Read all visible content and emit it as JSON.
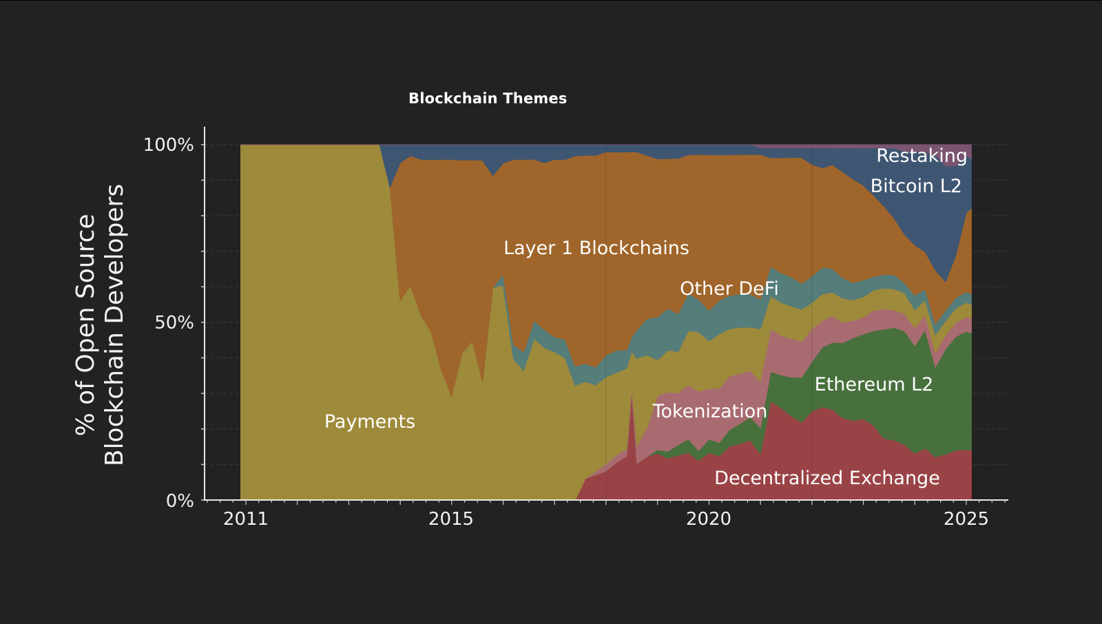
{
  "chart_data": {
    "type": "area",
    "stacked": true,
    "normalized": true,
    "title": "Blockchain Themes",
    "xlabel": "",
    "ylabel": "% of Open Source Blockchain Developers",
    "ylim": [
      0,
      100
    ],
    "xlim": [
      2010.2,
      2025.8
    ],
    "y_ticks": [
      "0%",
      "50%",
      "100%"
    ],
    "y_minor_step": 10,
    "x_ticks": [
      "2011",
      "2015",
      "2020",
      "2025"
    ],
    "grid": true,
    "legend": "inline labels",
    "x": [
      2010.9,
      2011.0,
      2013.6,
      2013.8,
      2014.0,
      2014.2,
      2014.4,
      2014.6,
      2014.8,
      2015.0,
      2015.2,
      2015.4,
      2015.6,
      2015.8,
      2016.0,
      2016.2,
      2016.4,
      2016.6,
      2016.8,
      2017.0,
      2017.2,
      2017.4,
      2017.6,
      2017.8,
      2018.0,
      2018.2,
      2018.4,
      2018.5,
      2018.6,
      2018.8,
      2019.0,
      2019.2,
      2019.4,
      2019.6,
      2019.8,
      2020.0,
      2020.2,
      2020.4,
      2020.6,
      2020.8,
      2021.0,
      2021.2,
      2021.4,
      2021.6,
      2021.8,
      2022.0,
      2022.2,
      2022.4,
      2022.6,
      2022.8,
      2023.0,
      2023.2,
      2023.4,
      2023.6,
      2023.8,
      2024.0,
      2024.2,
      2024.4,
      2024.6,
      2024.8,
      2025.0,
      2025.1
    ],
    "series": [
      {
        "name": "Decentralized Exchange",
        "color": "#9a4346",
        "values": [
          0,
          0,
          0,
          0,
          0,
          0,
          0,
          0,
          0,
          0,
          0,
          0,
          0,
          0,
          0,
          0,
          0,
          0,
          0,
          0,
          0,
          0,
          6,
          7,
          8,
          10,
          12,
          30,
          10,
          12,
          13,
          12,
          13,
          14,
          12,
          14,
          13,
          16,
          17,
          18,
          14,
          30,
          28,
          26,
          24,
          27,
          28,
          27,
          24,
          23,
          24,
          22,
          18,
          17,
          16,
          13,
          14,
          12,
          13,
          14,
          14,
          14
        ]
      },
      {
        "name": "Ethereum L2",
        "color": "#48703d",
        "values": [
          0,
          0,
          0,
          0,
          0,
          0,
          0,
          0,
          0,
          0,
          0,
          0,
          0,
          0,
          0,
          0,
          0,
          0,
          0,
          0,
          0,
          0,
          0,
          0,
          0,
          0,
          0,
          0,
          0,
          0,
          1,
          2,
          3,
          4,
          3,
          4,
          4,
          5,
          6,
          7,
          8,
          9,
          10,
          12,
          14,
          15,
          18,
          20,
          22,
          24,
          25,
          28,
          32,
          32,
          33,
          30,
          32,
          25,
          30,
          32,
          33,
          33
        ]
      },
      {
        "name": "Tokenization",
        "color": "#a86b70",
        "values": [
          0,
          0,
          0,
          0,
          0,
          0,
          0,
          0,
          0,
          0,
          0,
          0,
          0,
          0,
          0,
          0,
          0,
          0,
          0,
          0,
          0,
          0,
          0,
          1,
          2,
          2,
          2,
          1,
          5,
          8,
          15,
          17,
          15,
          16,
          18,
          15,
          16,
          16,
          15,
          14,
          14,
          13,
          12,
          12,
          11,
          10,
          8,
          8,
          6,
          5,
          5,
          6,
          6,
          5,
          5,
          5,
          4,
          4,
          4,
          4,
          4,
          4
        ]
      },
      {
        "name": "Payments",
        "color": "#9e8a3b",
        "values": [
          100,
          100,
          100,
          88,
          55,
          58,
          50,
          45,
          35,
          28,
          38,
          42,
          30,
          55,
          58,
          38,
          35,
          44,
          42,
          40,
          38,
          30,
          27,
          24,
          24,
          22,
          22,
          10,
          24,
          20,
          10,
          12,
          12,
          16,
          18,
          14,
          16,
          14,
          14,
          13,
          16,
          10,
          10,
          10,
          10,
          8,
          8,
          7,
          7,
          6,
          6,
          6,
          6,
          6,
          6,
          5,
          4,
          5,
          4,
          4,
          4,
          4
        ]
      },
      {
        "name": "Other DeFi",
        "color": "#557d7a",
        "values": [
          0,
          0,
          0,
          0,
          0,
          0,
          0,
          0,
          0,
          0,
          0,
          0,
          0,
          0,
          3,
          4,
          5,
          5,
          5,
          4,
          5,
          5,
          5,
          5,
          6,
          6,
          5,
          4,
          8,
          10,
          12,
          12,
          11,
          11,
          10,
          9,
          10,
          10,
          10,
          10,
          9,
          9,
          9,
          9,
          8,
          8,
          8,
          7,
          6,
          5,
          5,
          4,
          4,
          4,
          3,
          4,
          3,
          3,
          3,
          3,
          3,
          3
        ]
      },
      {
        "name": "Layer 1 Blockchains",
        "color": "#a0652a",
        "values": [
          0,
          0,
          0,
          0,
          38,
          35,
          42,
          46,
          57,
          64,
          50,
          48,
          56,
          29,
          30,
          50,
          52,
          44,
          46,
          48,
          48,
          55,
          58,
          59,
          56,
          53,
          54,
          51,
          49,
          45,
          44,
          43,
          45,
          41,
          44,
          46,
          43,
          42,
          42,
          42,
          44,
          33,
          35,
          37,
          39,
          34,
          30,
          31,
          31,
          30,
          28,
          24,
          20,
          16,
          14,
          14,
          10,
          15,
          8,
          12,
          22,
          24
        ]
      },
      {
        "name": "Bitcoin L2",
        "color": "#3e5672",
        "values": [
          0,
          0,
          0,
          12,
          5,
          3,
          4,
          4,
          4,
          4,
          4,
          4,
          4,
          8,
          5,
          4,
          4,
          4,
          5,
          4,
          4,
          3,
          3,
          3,
          2,
          2,
          2,
          2,
          2,
          3,
          4,
          4,
          4,
          3,
          3,
          3,
          3,
          3,
          3,
          3,
          2,
          3,
          3,
          3,
          3,
          5,
          6,
          5,
          7,
          9,
          11,
          14,
          17,
          20,
          24,
          26,
          27,
          32,
          33,
          25,
          16,
          14
        ]
      },
      {
        "name": "Restaking",
        "color": "#7a5470",
        "values": [
          0,
          0,
          0,
          0,
          0,
          0,
          0,
          0,
          0,
          0,
          0,
          0,
          0,
          0,
          0,
          0,
          0,
          0,
          0,
          0,
          0,
          0,
          0,
          0,
          0,
          0,
          0,
          0,
          0,
          0,
          0,
          0,
          0,
          0,
          0,
          0,
          0,
          0,
          0,
          0,
          1,
          1,
          1,
          1,
          1,
          1,
          1,
          1,
          1,
          1,
          1,
          1,
          1,
          1,
          2,
          2,
          2,
          3,
          6,
          6,
          3,
          4
        ]
      }
    ]
  },
  "labels": {
    "restaking": "Restaking",
    "bitcoin_l2": "Bitcoin L2",
    "layer1": "Layer 1 Blockchains",
    "other_defi": "Other DeFi",
    "ethereum_l2": "Ethereum L2",
    "tokenization": "Tokenization",
    "payments": "Payments",
    "dex": "Decentralized Exchange"
  },
  "axis": {
    "y_title_line1": "% of Open Source",
    "y_title_line2": "Blockchain Developers",
    "y_tick_0": "0%",
    "y_tick_50": "50%",
    "y_tick_100": "100%",
    "x_tick_2011": "2011",
    "x_tick_2015": "2015",
    "x_tick_2020": "2020",
    "x_tick_2025": "2025"
  }
}
